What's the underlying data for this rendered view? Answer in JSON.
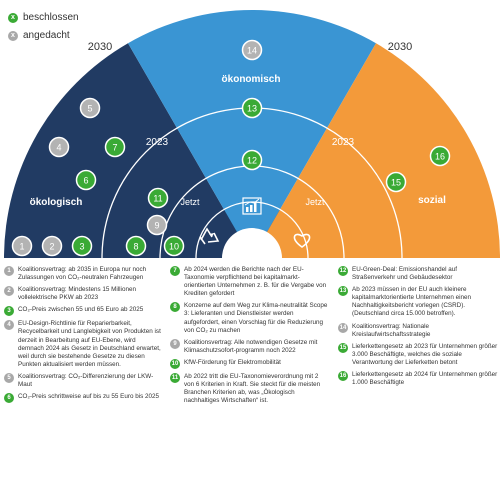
{
  "legend": {
    "done": {
      "mark": "x",
      "label": "beschlossen",
      "color": "#3aaa35"
    },
    "planned": {
      "mark": "x",
      "label": "angedacht",
      "color": "#b0b0b0"
    }
  },
  "years": {
    "outer_left": "2030",
    "outer_right": "2030",
    "mid_left": "2023",
    "mid_right": "2023",
    "inner_left": "Jetzt",
    "inner_right": "Jetzt"
  },
  "sectors": {
    "ecological": "ökologisch",
    "economic": "ökonomisch",
    "social": "sozial"
  },
  "colors": {
    "ecological": "#213b63",
    "economic": "#3a95d3",
    "social": "#f39a3a",
    "green": "#3aaa35",
    "grey": "#b3b3b3"
  },
  "markers": [
    {
      "n": "1",
      "status": "planned"
    },
    {
      "n": "2",
      "status": "planned"
    },
    {
      "n": "3",
      "status": "done"
    },
    {
      "n": "4",
      "status": "planned"
    },
    {
      "n": "5",
      "status": "planned"
    },
    {
      "n": "6",
      "status": "done"
    },
    {
      "n": "7",
      "status": "done"
    },
    {
      "n": "8",
      "status": "done"
    },
    {
      "n": "9",
      "status": "planned"
    },
    {
      "n": "10",
      "status": "done"
    },
    {
      "n": "11",
      "status": "done"
    },
    {
      "n": "12",
      "status": "done"
    },
    {
      "n": "13",
      "status": "done"
    },
    {
      "n": "14",
      "status": "planned"
    },
    {
      "n": "15",
      "status": "done"
    },
    {
      "n": "16",
      "status": "done"
    }
  ],
  "notes": [
    {
      "n": "1",
      "status": "planned",
      "text": "Koalitionsvertrag: ab 2035 in Europa nur noch Zulassungen von CO₂-neutralen Fahrzeugen"
    },
    {
      "n": "2",
      "status": "planned",
      "text": "Koalitionsvertrag: Mindestens 15 Millionen vollelektrische PKW ab 2023"
    },
    {
      "n": "3",
      "status": "done",
      "text": "CO₂-Preis zwischen 55 und 65 Euro ab 2025"
    },
    {
      "n": "4",
      "status": "planned",
      "text": "EU-Design-Richtlinie für Reparierbarkeit, Recycelbarkeit und Langlebigkeit von Produkten ist derzeit in Bearbeitung auf EU-Ebene, wird demnach 2024 als Gesetz in Deutschland erwartet, weil durch sie bestehende Gesetze zu diesen Punkten aktualisiert werden müssen."
    },
    {
      "n": "5",
      "status": "planned",
      "text": "Koalitionsvertrag: CO₂-Differenzierung der LKW-Maut"
    },
    {
      "n": "6",
      "status": "done",
      "text": "CO₂-Preis schrittweise auf bis zu 55 Euro bis 2025"
    },
    {
      "n": "7",
      "status": "done",
      "text": "Ab 2024 werden die Berichte nach der EU-Taxonomie verpflichtend bei kapitalmarkt-orientierten Unternehmen z. B. für die Vergabe von Krediten gefordert"
    },
    {
      "n": "8",
      "status": "done",
      "text": "Konzerne auf dem Weg zur Klima-neutralität Scope 3: Lieferanten und Dienstleister werden aufgefordert, einen Vorschlag für die Reduzierung von CO₂ zu machen"
    },
    {
      "n": "9",
      "status": "planned",
      "text": "Koalitionsvertrag: Alle notwendigen Gesetze mit Klimaschutzsofort-programm noch 2022"
    },
    {
      "n": "10",
      "status": "done",
      "text": "KfW-Förderung für Elektromobilität"
    },
    {
      "n": "11",
      "status": "done",
      "text": "Ab 2022 tritt die EU-Taxonomieverordnung mit 2 von 6 Kriterien in Kraft. Sie steckt für die meisten Branchen Kriterien ab, was „Ökologisch nachhaltiges Wirtschaften“ ist."
    },
    {
      "n": "12",
      "status": "done",
      "text": "EU-Green-Deal: Emissionshandel auf Straßenverkehr und Gebäudesektor"
    },
    {
      "n": "13",
      "status": "done",
      "text": "Ab 2023 müssen in der EU auch kleinere kapitalmarktorientierte Unternehmen einen Nachhaltigkeitsbericht vorlegen (CSRD). (Deutschland circa 15.000 betroffen)."
    },
    {
      "n": "14",
      "status": "planned",
      "text": "Koalitionsvertrag: Nationale Kreislaufwirtschaftsstrategie"
    },
    {
      "n": "15",
      "status": "done",
      "text": "Lieferkettengesetz ab 2023 für Unternehmen größer 3.000 Beschäftigte, welches die soziale Verantwortung der Lieferketten betont"
    },
    {
      "n": "16",
      "status": "done",
      "text": "Lieferkettengesetz ab 2024 für Unternehmen größer 1.000 Beschäftigte"
    }
  ]
}
